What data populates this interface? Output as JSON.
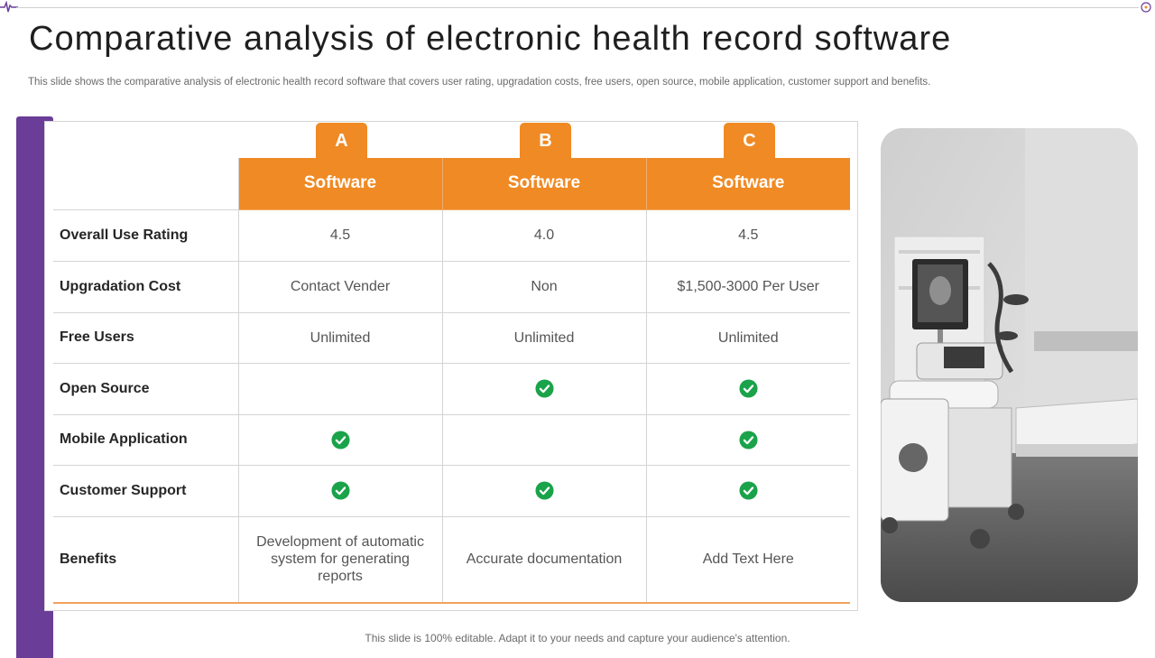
{
  "slide": {
    "title": "Comparative analysis of electronic health record software",
    "subtitle": "This slide shows the comparative analysis of electronic health record software that covers user rating, upgradation costs, free users, open source, mobile application, customer support and benefits.",
    "footer": "This slide is 100% editable. Adapt it to your needs and capture your audience's attention."
  },
  "colors": {
    "accent": "#f08a24",
    "sidebar": "#6a3d98",
    "check": "#1aa34a"
  },
  "table": {
    "tabs": [
      "A",
      "B",
      "C"
    ],
    "columns": [
      "Software",
      "Software",
      "Software"
    ],
    "rows": [
      {
        "label": "Overall Use Rating",
        "values": [
          "4.5",
          "4.0",
          "4.5"
        ]
      },
      {
        "label": "Upgradation Cost",
        "values": [
          "Contact Vender",
          "Non",
          "$1,500-3000 Per User"
        ]
      },
      {
        "label": "Free Users",
        "values": [
          "Unlimited",
          "Unlimited",
          "Unlimited"
        ]
      },
      {
        "label": "Open Source",
        "checks": [
          false,
          true,
          true
        ]
      },
      {
        "label": "Mobile Application",
        "checks": [
          true,
          false,
          true
        ]
      },
      {
        "label": "Customer Support",
        "checks": [
          true,
          true,
          true
        ]
      },
      {
        "label": "Benefits",
        "values": [
          "Development of automatic system for generating reports",
          "Accurate documentation",
          "Add Text Here"
        ]
      }
    ]
  }
}
